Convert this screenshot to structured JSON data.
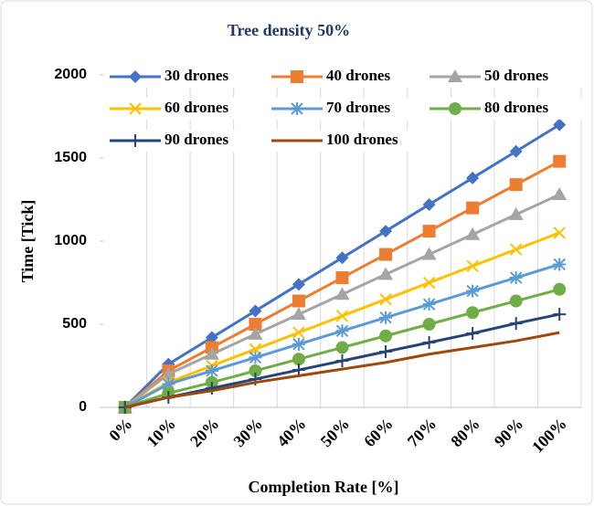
{
  "chart_data": {
    "type": "line",
    "title": "Tree density 50%",
    "x_label": "Completion Rate [%]",
    "y_label": "Time [Tick]",
    "categories": [
      "0%",
      "10%",
      "20%",
      "30%",
      "40%",
      "50%",
      "60%",
      "70%",
      "80%",
      "90%",
      "100%"
    ],
    "ylim": [
      0,
      2000
    ],
    "yticks": [
      0,
      500,
      1000,
      1500,
      2000
    ],
    "grid": "x",
    "series": [
      {
        "name": "30 drones",
        "color": "#4472c4",
        "marker": "diamond",
        "values": [
          0,
          260,
          420,
          580,
          740,
          900,
          1060,
          1220,
          1380,
          1540,
          1700
        ]
      },
      {
        "name": "40 drones",
        "color": "#ed7d31",
        "marker": "square",
        "values": [
          0,
          220,
          360,
          500,
          640,
          780,
          920,
          1060,
          1200,
          1340,
          1480
        ]
      },
      {
        "name": "50 drones",
        "color": "#a5a5a5",
        "marker": "triangle",
        "values": [
          0,
          200,
          320,
          440,
          560,
          680,
          800,
          920,
          1040,
          1160,
          1280
        ]
      },
      {
        "name": "60 drones",
        "color": "#ffc000",
        "marker": "x",
        "values": [
          0,
          150,
          250,
          350,
          450,
          550,
          650,
          750,
          850,
          950,
          1050
        ]
      },
      {
        "name": "70 drones",
        "color": "#5b9bd5",
        "marker": "star",
        "values": [
          0,
          140,
          220,
          300,
          380,
          460,
          540,
          620,
          700,
          780,
          860
        ]
      },
      {
        "name": "80 drones",
        "color": "#70ad47",
        "marker": "circle",
        "values": [
          0,
          85,
          150,
          220,
          290,
          360,
          430,
          500,
          570,
          640,
          710
        ]
      },
      {
        "name": "90 drones",
        "color": "#264478",
        "marker": "plus",
        "values": [
          0,
          60,
          115,
          170,
          225,
          280,
          335,
          390,
          445,
          505,
          560
        ]
      },
      {
        "name": "100 drones",
        "color": "#9e480e",
        "marker": "none",
        "values": [
          0,
          60,
          100,
          150,
          190,
          230,
          270,
          320,
          360,
          400,
          450
        ]
      }
    ]
  }
}
